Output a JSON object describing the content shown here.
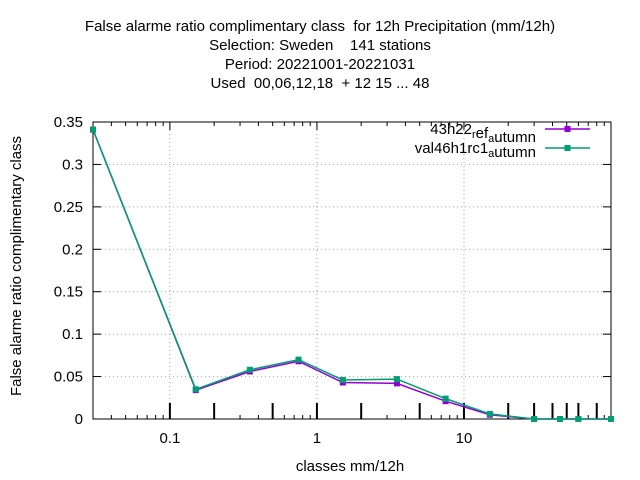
{
  "chart_data": {
    "type": "line",
    "title_lines": [
      "False alarme ratio complimentary class  for 12h Precipitation (mm/12h)",
      "Selection: Sweden    141 stations",
      "Period: 20221001-20221031",
      "Used  00,06,12,18  + 12 15 ... 48"
    ],
    "xlabel": "classes mm/12h",
    "ylabel": "False alarme ratio complimentary class",
    "xscale": "log",
    "xlim": [
      0.03,
      100
    ],
    "ylim": [
      0,
      0.35
    ],
    "x_ticks": [
      "0.1",
      "1",
      "10"
    ],
    "y_ticks": [
      "0",
      "0.05",
      "0.1",
      "0.15",
      "0.2",
      "0.25",
      "0.3",
      "0.35"
    ],
    "grid": true,
    "legend_position": "top-right",
    "series": [
      {
        "name": "43h22_ref_autumn",
        "legend_main": "43h22",
        "legend_sub1": "r",
        "legend_mid": "ef",
        "legend_sub2": "a",
        "legend_end": "utumn",
        "color": "#9400d3",
        "x": [
          0.03,
          0.15,
          0.35,
          0.75,
          1.5,
          3.5,
          7.5,
          15,
          30,
          45,
          60,
          100
        ],
        "y": [
          0.341,
          0.034,
          0.056,
          0.068,
          0.043,
          0.042,
          0.021,
          0.005,
          0.0,
          0.0,
          0.0,
          0.0
        ]
      },
      {
        "name": "val46h1rc1_autumn",
        "legend_main": "val46h1rc1",
        "legend_sub1": "a",
        "legend_end": "utumn",
        "color": "#009e73",
        "x": [
          0.03,
          0.15,
          0.35,
          0.75,
          1.5,
          3.5,
          7.5,
          15,
          30,
          45,
          60,
          100
        ],
        "y": [
          0.341,
          0.035,
          0.058,
          0.07,
          0.046,
          0.047,
          0.024,
          0.006,
          0.0,
          0.0,
          0.0,
          0.0
        ]
      }
    ],
    "class_thresholds": [
      0.1,
      0.2,
      0.5,
      1,
      2,
      5,
      10,
      20,
      30,
      40,
      50,
      60,
      80
    ]
  }
}
